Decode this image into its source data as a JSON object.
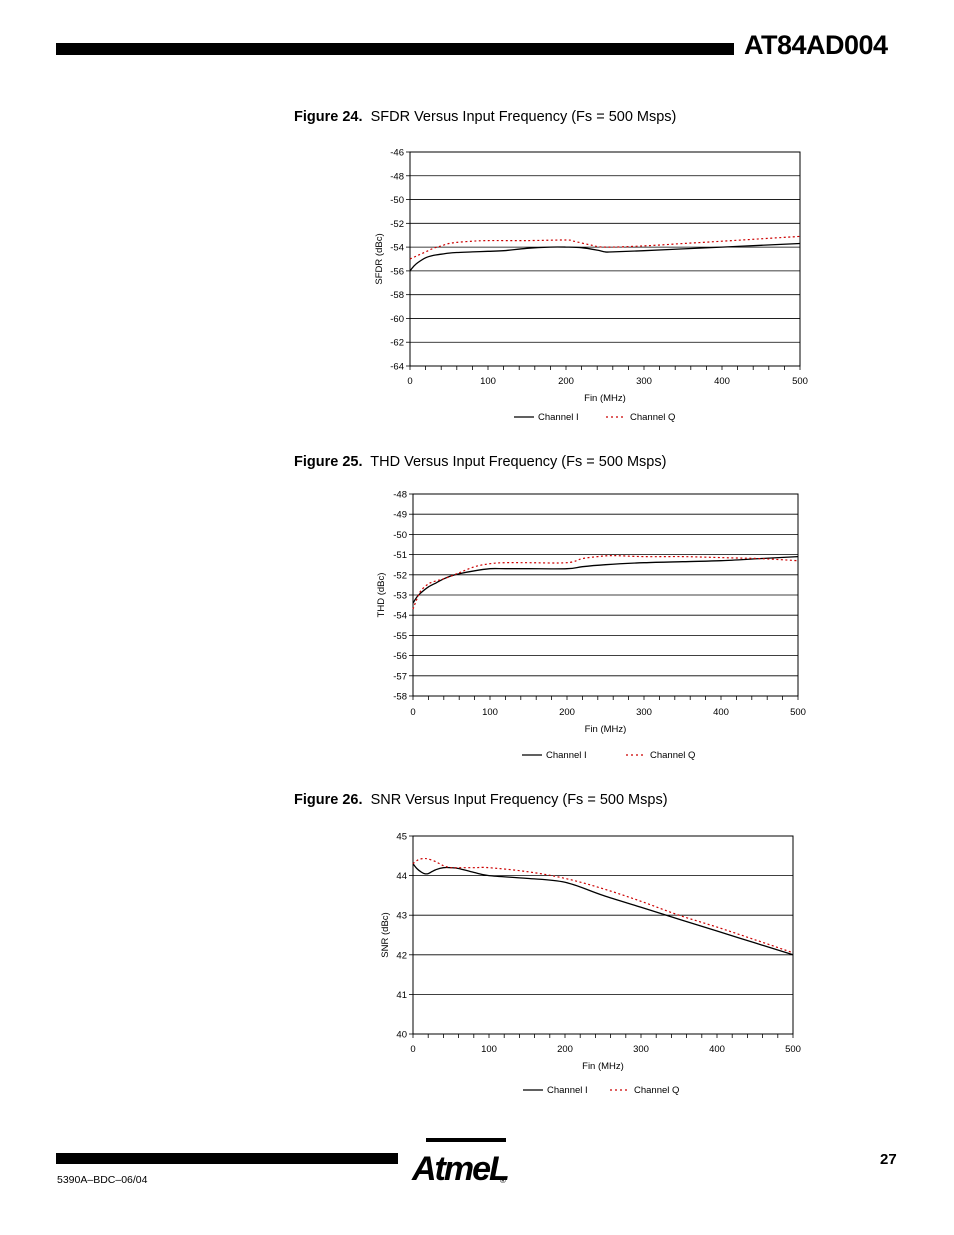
{
  "header": {
    "title": "AT84AD004"
  },
  "footer": {
    "page_number": "27",
    "doc_code": "5390A–BDC–06/04",
    "logo_text": "AtmeL"
  },
  "chart_data": [
    {
      "type": "line",
      "figure_label": "Figure 24.",
      "title": "SFDR Versus Input Frequency (Fs = 500 Msps)",
      "xlabel": "Fin (MHz)",
      "ylabel": "SFDR (dBc)",
      "xlim": [
        0,
        500
      ],
      "ylim": [
        -64,
        -46
      ],
      "xticks": [
        "0",
        "100",
        "200",
        "300",
        "400",
        "500"
      ],
      "yticks": [
        "-46",
        "-48",
        "-50",
        "-52",
        "-54",
        "-56",
        "-58",
        "-60",
        "-62",
        "-64"
      ],
      "series": [
        {
          "name": "Channel I",
          "color": "#000000",
          "dash": "solid",
          "x": [
            0,
            5,
            10,
            20,
            30,
            40,
            50,
            60,
            80,
            100,
            120,
            150,
            180,
            200,
            220,
            240,
            250,
            260,
            300,
            350,
            400,
            450,
            500
          ],
          "y": [
            -56.0,
            -55.6,
            -55.3,
            -54.9,
            -54.7,
            -54.6,
            -54.5,
            -54.45,
            -54.4,
            -54.35,
            -54.3,
            -54.1,
            -54.0,
            -54.0,
            -54.05,
            -54.25,
            -54.4,
            -54.4,
            -54.3,
            -54.15,
            -54.0,
            -53.85,
            -53.7
          ]
        },
        {
          "name": "Channel Q",
          "color": "#cc0000",
          "dash": "dotted",
          "x": [
            0,
            10,
            20,
            30,
            40,
            50,
            60,
            80,
            100,
            150,
            200,
            210,
            230,
            250,
            300,
            350,
            400,
            450,
            500
          ],
          "y": [
            -55.0,
            -54.7,
            -54.4,
            -54.1,
            -53.9,
            -53.7,
            -53.6,
            -53.5,
            -53.45,
            -53.45,
            -53.4,
            -53.5,
            -53.8,
            -54.0,
            -53.9,
            -53.7,
            -53.5,
            -53.3,
            -53.1
          ]
        }
      ],
      "legend": "bottom-center",
      "grid": "horizontal"
    },
    {
      "type": "line",
      "figure_label": "Figure 25.",
      "title": "THD Versus Input Frequency (Fs = 500 Msps)",
      "xlabel": "Fin (MHz)",
      "ylabel": "THD (dBc)",
      "xlim": [
        0,
        500
      ],
      "ylim": [
        -58,
        -48
      ],
      "xticks": [
        "0",
        "100",
        "200",
        "300",
        "400",
        "500"
      ],
      "yticks": [
        "-48",
        "-49",
        "-50",
        "-51",
        "-52",
        "-53",
        "-54",
        "-55",
        "-56",
        "-57",
        "-58"
      ],
      "series": [
        {
          "name": "Channel I",
          "color": "#000000",
          "dash": "solid",
          "x": [
            0,
            5,
            10,
            20,
            30,
            40,
            50,
            60,
            80,
            100,
            120,
            150,
            200,
            220,
            250,
            300,
            350,
            400,
            450,
            500
          ],
          "y": [
            -53.4,
            -53.1,
            -52.9,
            -52.6,
            -52.4,
            -52.2,
            -52.05,
            -51.95,
            -51.8,
            -51.7,
            -51.7,
            -51.7,
            -51.7,
            -51.6,
            -51.5,
            -51.4,
            -51.35,
            -51.3,
            -51.2,
            -51.1
          ]
        },
        {
          "name": "Channel Q",
          "color": "#cc0000",
          "dash": "dotted",
          "x": [
            0,
            5,
            10,
            20,
            30,
            40,
            60,
            80,
            100,
            120,
            150,
            200,
            220,
            240,
            260,
            300,
            350,
            400,
            450,
            500
          ],
          "y": [
            -53.7,
            -53.2,
            -52.8,
            -52.45,
            -52.3,
            -52.2,
            -51.9,
            -51.6,
            -51.45,
            -51.4,
            -51.4,
            -51.4,
            -51.2,
            -51.1,
            -51.05,
            -51.1,
            -51.1,
            -51.15,
            -51.2,
            -51.3
          ]
        }
      ],
      "legend": "bottom-center",
      "grid": "horizontal"
    },
    {
      "type": "line",
      "figure_label": "Figure 26.",
      "title": "SNR Versus Input Frequency (Fs = 500 Msps)",
      "xlabel": "Fin (MHz)",
      "ylabel": "SNR (dBc)",
      "xlim": [
        0,
        500
      ],
      "ylim": [
        40,
        45
      ],
      "xticks": [
        "0",
        "100",
        "200",
        "300",
        "400",
        "500"
      ],
      "yticks": [
        "45",
        "44",
        "43",
        "42",
        "41",
        "40"
      ],
      "series": [
        {
          "name": "Channel I",
          "color": "#000000",
          "dash": "solid",
          "x": [
            0,
            5,
            10,
            15,
            20,
            25,
            30,
            40,
            50,
            60,
            80,
            100,
            150,
            200,
            250,
            300,
            350,
            400,
            450,
            500
          ],
          "y": [
            44.3,
            44.18,
            44.1,
            44.05,
            44.05,
            44.1,
            44.15,
            44.2,
            44.2,
            44.18,
            44.08,
            44.0,
            43.93,
            43.83,
            43.5,
            43.2,
            42.9,
            42.6,
            42.3,
            42.0
          ]
        },
        {
          "name": "Channel Q",
          "color": "#cc0000",
          "dash": "dotted",
          "x": [
            0,
            5,
            10,
            15,
            20,
            30,
            40,
            50,
            60,
            80,
            100,
            150,
            200,
            250,
            300,
            350,
            400,
            450,
            500
          ],
          "y": [
            44.3,
            44.38,
            44.42,
            44.43,
            44.42,
            44.35,
            44.25,
            44.2,
            44.2,
            44.2,
            44.2,
            44.1,
            43.93,
            43.67,
            43.35,
            43.0,
            42.7,
            42.38,
            42.05
          ]
        }
      ],
      "legend": "bottom-center",
      "grid": "horizontal"
    }
  ]
}
